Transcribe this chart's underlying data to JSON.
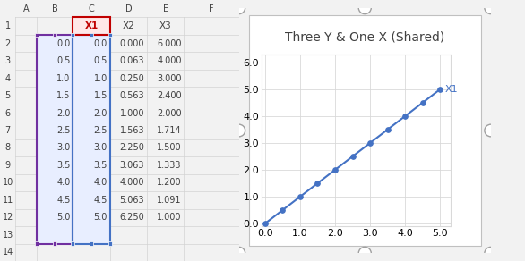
{
  "title": "Three Y & One X (Shared)",
  "x_values": [
    0.0,
    0.5,
    1.0,
    1.5,
    2.0,
    2.5,
    3.0,
    3.5,
    4.0,
    4.5,
    5.0
  ],
  "x1_values": [
    0.0,
    0.5,
    1.0,
    1.5,
    2.0,
    2.5,
    3.0,
    3.5,
    4.0,
    4.5,
    5.0
  ],
  "x2_values": [
    0.0,
    0.063,
    0.25,
    0.563,
    1.0,
    1.563,
    2.25,
    3.063,
    4.0,
    5.063,
    6.25
  ],
  "x3_values": [
    6.0,
    4.0,
    3.0,
    2.4,
    2.0,
    1.714,
    1.5,
    1.333,
    1.2,
    1.091,
    1.0
  ],
  "xlim": [
    -0.05,
    5.3
  ],
  "ylim": [
    -0.05,
    6.3
  ],
  "xticks": [
    0.0,
    1.0,
    2.0,
    3.0,
    4.0,
    5.0
  ],
  "yticks": [
    0.0,
    1.0,
    2.0,
    3.0,
    4.0,
    5.0,
    6.0
  ],
  "xtick_labels": [
    "0.0",
    "1.0",
    "2.0",
    "3.0",
    "4.0",
    "5.0"
  ],
  "ytick_labels": [
    "0.0",
    "1.0",
    "2.0",
    "3.0",
    "4.0",
    "5.0",
    "6.0"
  ],
  "line_color": "#4472C4",
  "marker_size": 4,
  "line_width": 1.5,
  "label": "X1",
  "label_color": "#4472C4",
  "chart_bg": "#FFFFFF",
  "grid_color": "#D9D9D9",
  "border_color": "#C0C0C0",
  "title_fontsize": 10,
  "tick_fontsize": 8,
  "annot_fontsize": 8,
  "outer_bg": "#F2F2F2",
  "spreadsheet_bg": "#FFFFFF",
  "header_bg": "#F2F2F2",
  "cell_line_color": "#D3D3D3",
  "col_headers": [
    "A",
    "B",
    "C",
    "D",
    "E",
    "F"
  ],
  "row_headers": [
    "1",
    "2",
    "3",
    "4",
    "5",
    "6",
    "7",
    "8",
    "9",
    "10",
    "11",
    "12",
    "13",
    "14"
  ],
  "data_headers": [
    "X1",
    "X2",
    "X3"
  ],
  "highlight_col_b": "#E8EEFF",
  "highlight_col_c": "#E8EEFF",
  "highlight_header_c": "#FFE8E8",
  "selection_purple": "#7030A0",
  "selection_blue": "#4472C4"
}
